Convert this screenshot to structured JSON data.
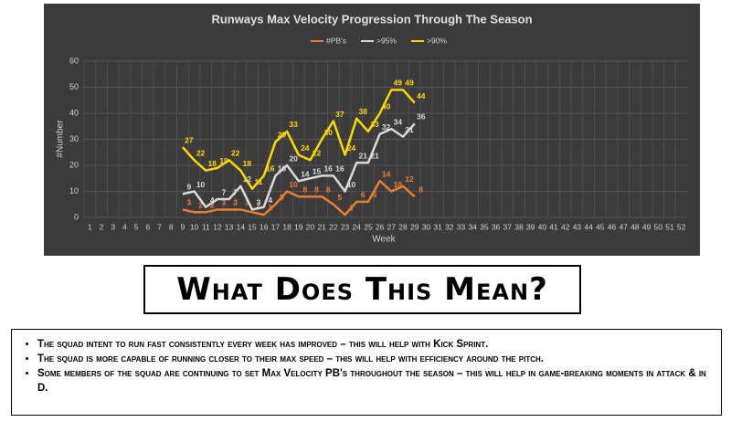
{
  "chart_data": {
    "type": "line",
    "title": "Runways Max Velocity Progression Through The Season",
    "x_label": "Week",
    "y_label": "#Number",
    "categories": [
      1,
      2,
      3,
      4,
      5,
      6,
      7,
      8,
      9,
      10,
      11,
      12,
      13,
      14,
      15,
      16,
      17,
      18,
      19,
      20,
      21,
      22,
      23,
      24,
      25,
      26,
      27,
      28,
      29,
      30,
      31,
      32,
      33,
      34,
      35,
      36,
      37,
      38,
      39,
      40,
      41,
      42,
      43,
      44,
      45,
      46,
      47,
      48,
      49,
      50,
      51,
      52
    ],
    "ylim": [
      0,
      60
    ],
    "yticks": [
      0,
      10,
      20,
      30,
      40,
      50,
      60
    ],
    "grid": true,
    "legend": "top",
    "series": [
      {
        "name": "#PB's",
        "color": "#ed7d31",
        "values": [
          null,
          null,
          null,
          null,
          null,
          null,
          null,
          null,
          3,
          2,
          2,
          3,
          3,
          3,
          2,
          1,
          5,
          10,
          8,
          8,
          8,
          5,
          1,
          6,
          6,
          14,
          10,
          12,
          8,
          null,
          null,
          null,
          null,
          null,
          null,
          null,
          null,
          null,
          null,
          null,
          null,
          null,
          null,
          null,
          null,
          null,
          null,
          null,
          null,
          null,
          null,
          null
        ]
      },
      {
        "name": ">95%",
        "color": "#d9d9d9",
        "values": [
          null,
          null,
          null,
          null,
          null,
          null,
          null,
          null,
          9,
          10,
          4,
          7,
          7,
          12,
          3,
          4,
          16,
          20,
          14,
          15,
          16,
          16,
          10,
          21,
          21,
          32,
          34,
          31,
          36,
          null,
          null,
          null,
          null,
          null,
          null,
          null,
          null,
          null,
          null,
          null,
          null,
          null,
          null,
          null,
          null,
          null,
          null,
          null,
          null,
          null,
          null,
          null
        ]
      },
      {
        "name": ">90%",
        "color": "#ffd700",
        "values": [
          null,
          null,
          null,
          null,
          null,
          null,
          null,
          null,
          27,
          22,
          18,
          19,
          22,
          18,
          11,
          16,
          29,
          33,
          24,
          22,
          30,
          37,
          24,
          38,
          33,
          40,
          49,
          49,
          44,
          null,
          null,
          null,
          null,
          null,
          null,
          null,
          null,
          null,
          null,
          null,
          null,
          null,
          null,
          null,
          null,
          null,
          null,
          null,
          null,
          null,
          null,
          null
        ]
      }
    ]
  },
  "heading": "What Does This Mean?",
  "bullets": [
    "The squad intent to run fast consistently every week has improved – this will help with Kick Sprint.",
    "The squad is more capable of running closer to their max speed – this will help with efficiency around the pitch.",
    "Some members of the squad are continuing to set Max Velocity PB's throughout the season – this will help in game-breaking moments in attack & in D."
  ]
}
